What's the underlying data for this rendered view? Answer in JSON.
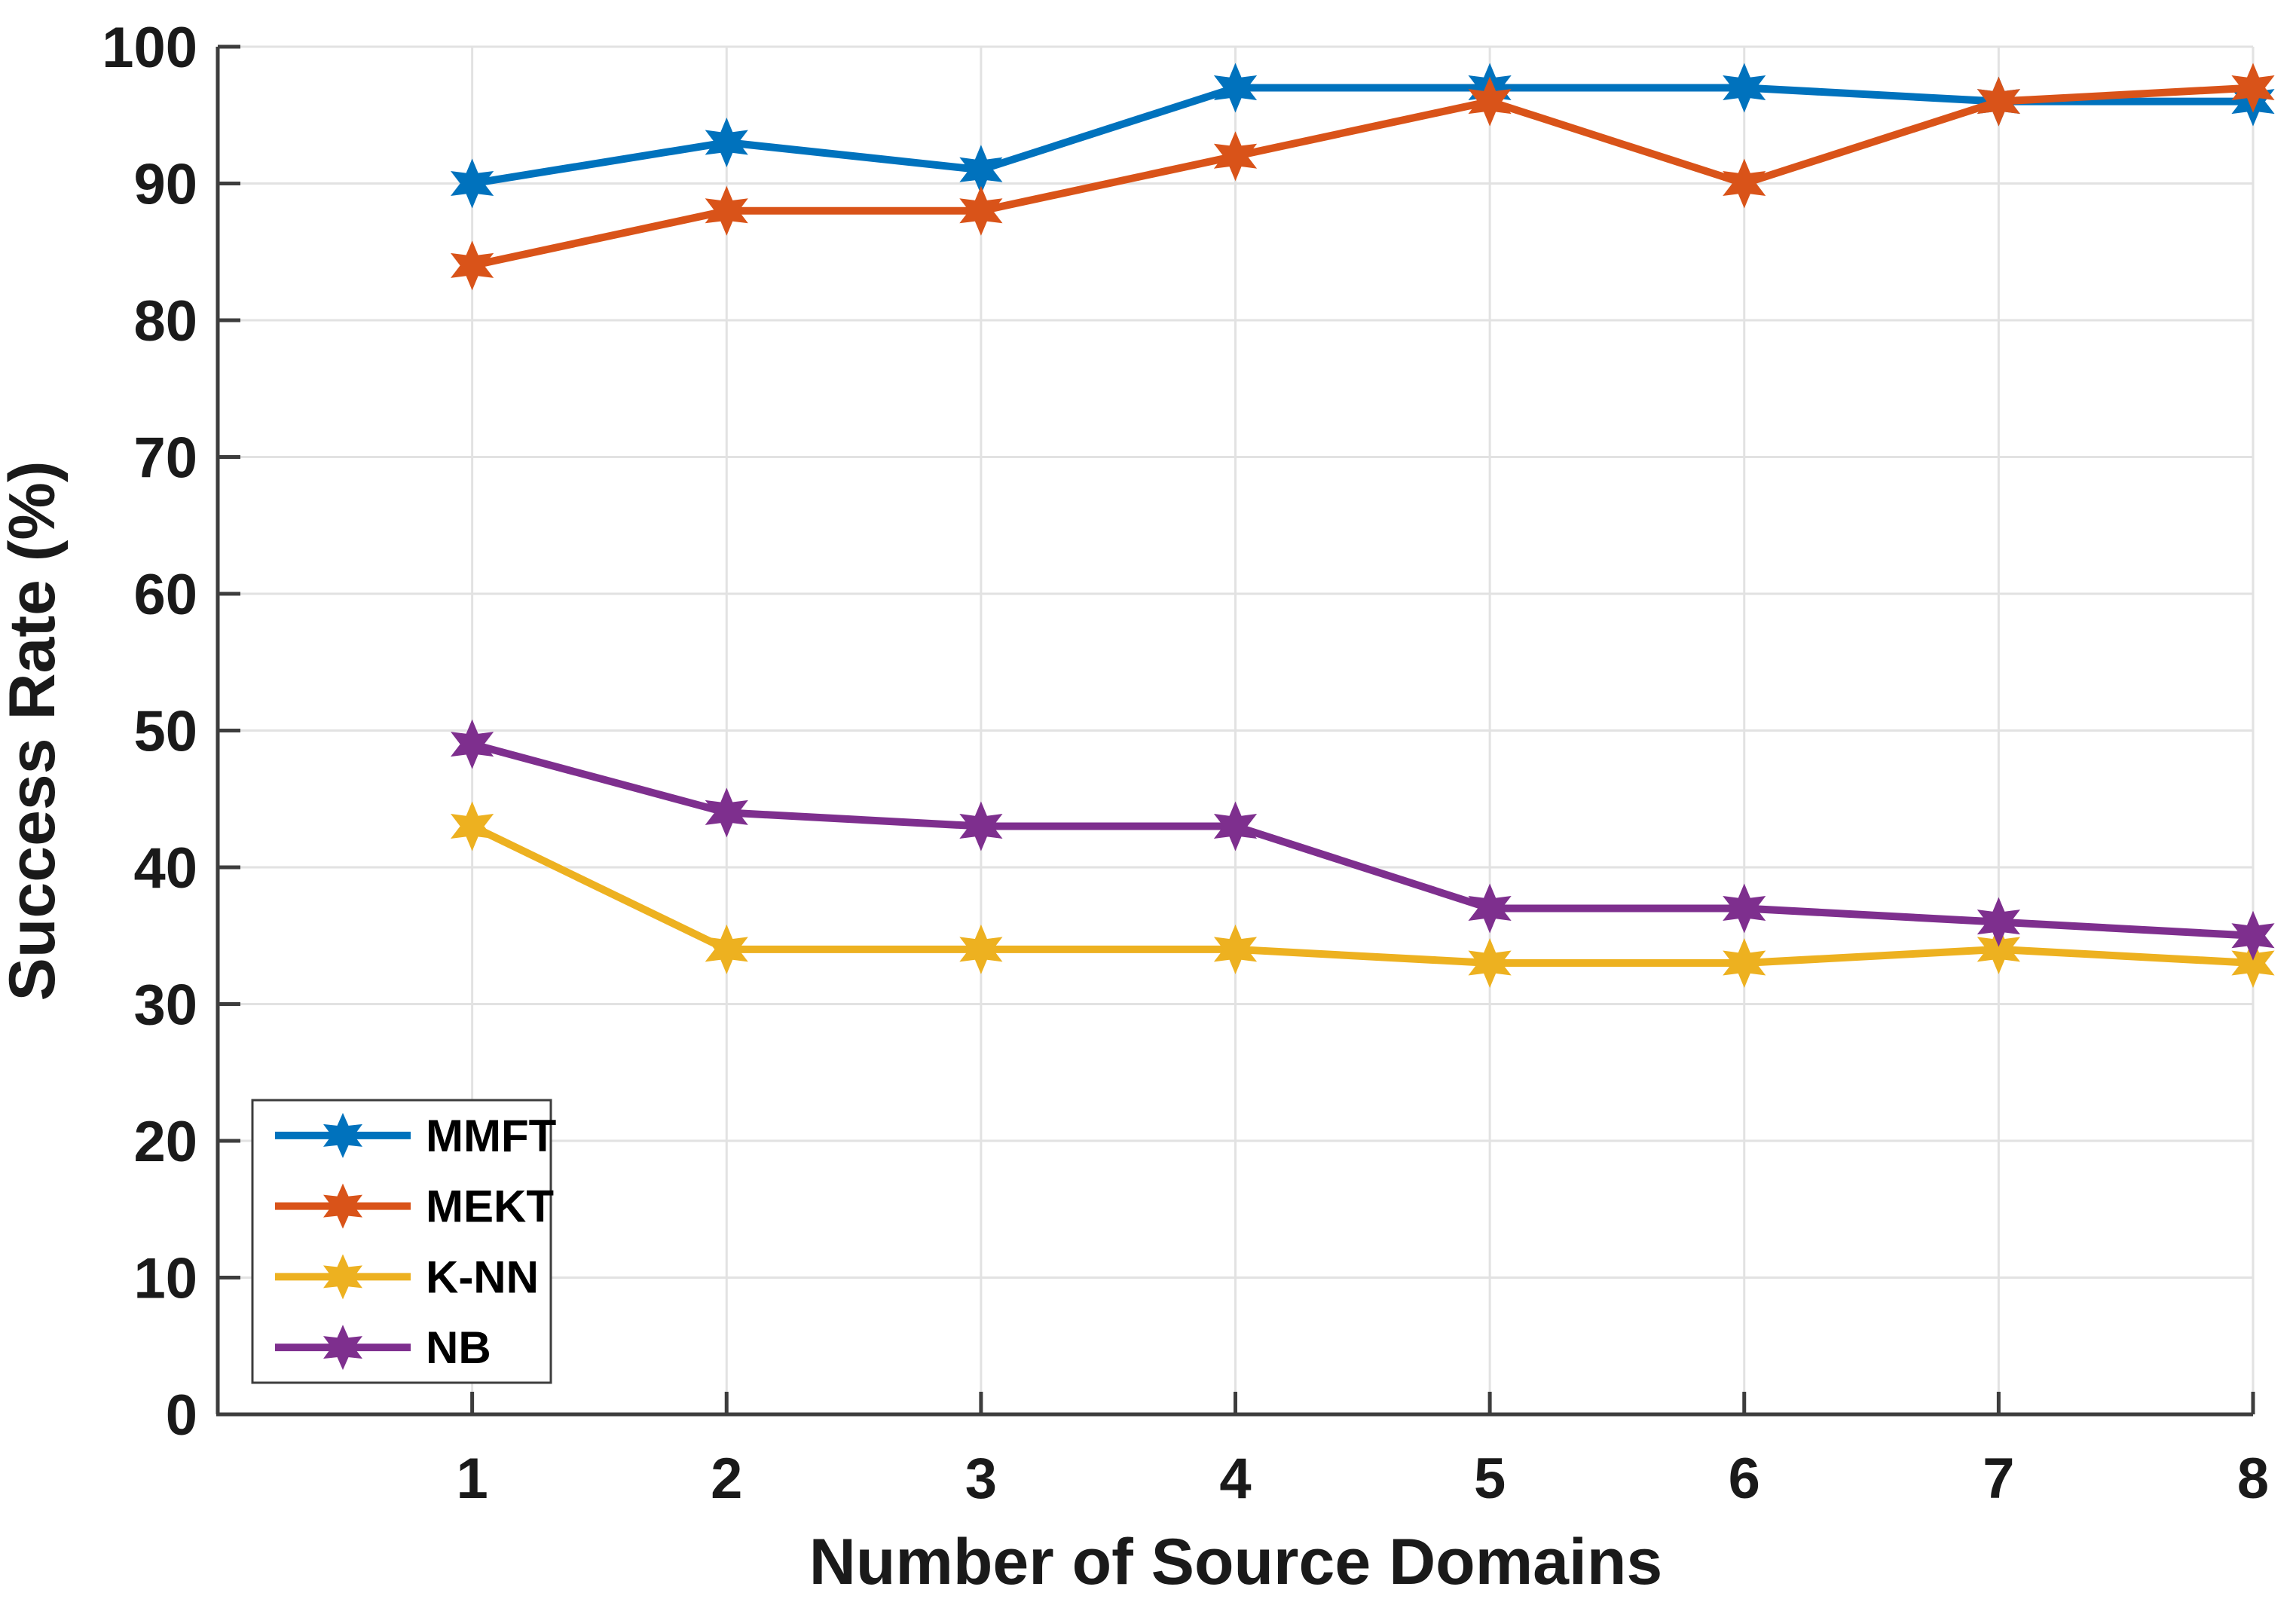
{
  "chart_data": {
    "type": "line",
    "title": "",
    "xlabel": "Number of Source Domains",
    "ylabel": "Success Rate (%)",
    "x": [
      1,
      2,
      3,
      4,
      5,
      6,
      7,
      8
    ],
    "xticks": [
      1,
      2,
      3,
      4,
      5,
      6,
      7,
      8
    ],
    "yticks": [
      0,
      10,
      20,
      30,
      40,
      50,
      60,
      70,
      80,
      90,
      100
    ],
    "xlim": [
      0,
      8
    ],
    "ylim": [
      0,
      100
    ],
    "grid": true,
    "marker": "hexagram",
    "legend_position": "lower-left",
    "series": [
      {
        "name": "MMFT",
        "color": "#0072BD",
        "values": [
          90,
          93,
          91,
          97,
          97,
          97,
          96,
          96
        ]
      },
      {
        "name": "MEKT",
        "color": "#D95319",
        "values": [
          84,
          88,
          88,
          92,
          96,
          90,
          96,
          97
        ]
      },
      {
        "name": "K-NN",
        "color": "#EDB120",
        "values": [
          43,
          34,
          34,
          34,
          33,
          33,
          34,
          33
        ]
      },
      {
        "name": "NB",
        "color": "#7E2F8E",
        "values": [
          49,
          44,
          43,
          43,
          37,
          37,
          36,
          35
        ]
      }
    ],
    "style": {
      "grid_color": "#E2E2E2",
      "spine_color": "#3D3D3D",
      "label_color": "#1a1a1a",
      "background": "#FFFFFF"
    }
  }
}
